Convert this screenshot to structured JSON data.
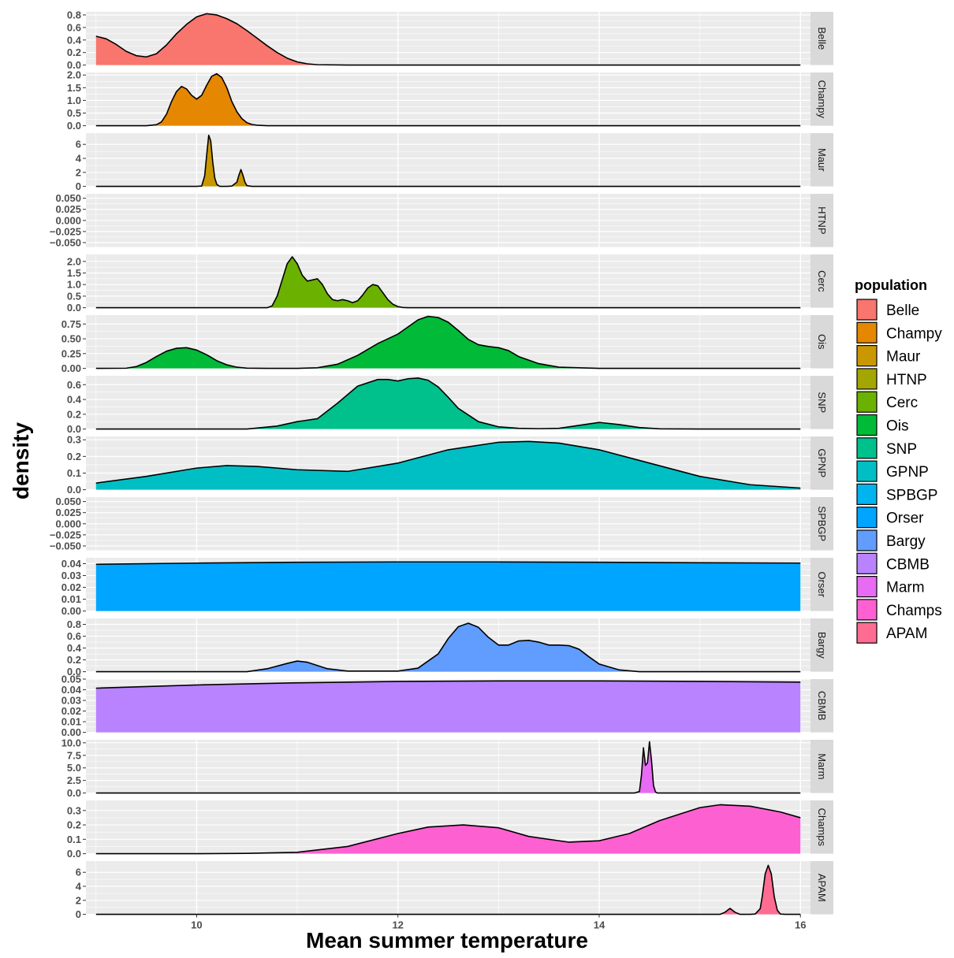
{
  "chart_data": {
    "type": "area",
    "title": "",
    "xlabel": "Mean summer temperature",
    "ylabel": "density",
    "xlim": [
      8.9,
      16.1
    ],
    "xticks": [
      10,
      12,
      14,
      16
    ],
    "grid": true,
    "legend": {
      "title": "population",
      "placement": "right",
      "entries": [
        "Belle",
        "Champy",
        "Maur",
        "HTNP",
        "Cerc",
        "Ois",
        "SNP",
        "GPNP",
        "SPBGP",
        "Orser",
        "Bargy",
        "CBMB",
        "Marm",
        "Champs",
        "APAM"
      ]
    },
    "panels": [
      {
        "name": "Belle",
        "color": "#F8766D",
        "ylim": [
          0,
          0.85
        ],
        "yticks": [
          0,
          0.2,
          0.4,
          0.6,
          0.8
        ],
        "ylabels": [
          "0.0",
          "0.2",
          "0.4",
          "0.6",
          "0.8"
        ],
        "x": [
          9.0,
          9.1,
          9.2,
          9.3,
          9.4,
          9.5,
          9.6,
          9.7,
          9.8,
          9.9,
          10.0,
          10.1,
          10.2,
          10.3,
          10.4,
          10.5,
          10.6,
          10.7,
          10.8,
          10.9,
          11.0,
          11.1,
          11.2,
          11.5,
          12.0,
          13.0,
          14.0,
          15.0,
          16.0
        ],
        "y": [
          0.46,
          0.42,
          0.33,
          0.22,
          0.15,
          0.13,
          0.18,
          0.32,
          0.5,
          0.65,
          0.77,
          0.82,
          0.8,
          0.74,
          0.66,
          0.55,
          0.43,
          0.31,
          0.2,
          0.11,
          0.05,
          0.02,
          0.006,
          0.001,
          0,
          0,
          0,
          0,
          0
        ]
      },
      {
        "name": "Champy",
        "color": "#E58700",
        "ylim": [
          0,
          2.1
        ],
        "yticks": [
          0,
          0.5,
          1.0,
          1.5,
          2.0
        ],
        "ylabels": [
          "0.0",
          "0.5",
          "1.0",
          "1.5",
          "2.0"
        ],
        "x": [
          9.0,
          9.5,
          9.6,
          9.65,
          9.7,
          9.75,
          9.8,
          9.85,
          9.9,
          9.95,
          10.0,
          10.05,
          10.1,
          10.15,
          10.2,
          10.25,
          10.3,
          10.35,
          10.4,
          10.45,
          10.5,
          10.55,
          10.6,
          10.7,
          11.0,
          12.0,
          14.0,
          16.0
        ],
        "y": [
          0,
          0,
          0.04,
          0.15,
          0.45,
          0.95,
          1.35,
          1.55,
          1.45,
          1.2,
          1.05,
          1.2,
          1.6,
          1.95,
          2.05,
          1.9,
          1.5,
          0.95,
          0.55,
          0.28,
          0.12,
          0.05,
          0.02,
          0,
          0,
          0,
          0,
          0
        ]
      },
      {
        "name": "Maur",
        "color": "#C99800",
        "ylim": [
          0,
          7.6
        ],
        "yticks": [
          0,
          2,
          4,
          6
        ],
        "ylabels": [
          "0",
          "2",
          "4",
          "6"
        ],
        "x": [
          9.0,
          10.0,
          10.05,
          10.08,
          10.1,
          10.12,
          10.14,
          10.16,
          10.18,
          10.2,
          10.23,
          10.3,
          10.35,
          10.4,
          10.42,
          10.44,
          10.46,
          10.48,
          10.5,
          10.55,
          10.6,
          12.0,
          14.0,
          16.0
        ],
        "y": [
          0,
          0,
          0.05,
          1.5,
          4.5,
          7.3,
          6.5,
          3.5,
          1.2,
          0.3,
          0,
          0,
          0.05,
          0.6,
          1.6,
          2.4,
          1.6,
          0.6,
          0.1,
          0,
          0,
          0,
          0,
          0
        ]
      },
      {
        "name": "HTNP",
        "color": "#A3A500",
        "ylim": [
          -0.06,
          0.06
        ],
        "yticks": [
          -0.05,
          -0.025,
          0,
          0.025,
          0.05
        ],
        "ylabels": [
          "−0.050",
          "−0.025",
          "0.000",
          "0.025",
          "0.050"
        ],
        "x": [],
        "y": []
      },
      {
        "name": "Cerc",
        "color": "#6BB100",
        "ylim": [
          0,
          2.3
        ],
        "yticks": [
          0,
          0.5,
          1.0,
          1.5,
          2.0
        ],
        "ylabels": [
          "0.0",
          "0.5",
          "1.0",
          "1.5",
          "2.0"
        ],
        "x": [
          9.0,
          10.7,
          10.75,
          10.8,
          10.85,
          10.9,
          10.95,
          11.0,
          11.05,
          11.1,
          11.15,
          11.2,
          11.25,
          11.3,
          11.35,
          11.4,
          11.45,
          11.5,
          11.55,
          11.6,
          11.65,
          11.7,
          11.75,
          11.8,
          11.85,
          11.9,
          11.95,
          12.0,
          12.05,
          12.1,
          12.2,
          14.0,
          16.0
        ],
        "y": [
          0,
          0,
          0.08,
          0.5,
          1.2,
          1.9,
          2.2,
          1.9,
          1.4,
          1.15,
          1.2,
          1.25,
          1.0,
          0.6,
          0.35,
          0.3,
          0.35,
          0.3,
          0.22,
          0.3,
          0.55,
          0.85,
          1.0,
          0.95,
          0.65,
          0.35,
          0.15,
          0.05,
          0.01,
          0,
          0,
          0,
          0
        ]
      },
      {
        "name": "Ois",
        "color": "#00BA38",
        "ylim": [
          0,
          0.9
        ],
        "yticks": [
          0,
          0.25,
          0.5,
          0.75
        ],
        "ylabels": [
          "0.00",
          "0.25",
          "0.50",
          "0.75"
        ],
        "x": [
          9.0,
          9.3,
          9.4,
          9.5,
          9.6,
          9.7,
          9.8,
          9.9,
          10.0,
          10.1,
          10.2,
          10.3,
          10.4,
          10.5,
          10.7,
          11.0,
          11.2,
          11.4,
          11.6,
          11.8,
          12.0,
          12.1,
          12.2,
          12.3,
          12.4,
          12.5,
          12.6,
          12.7,
          12.8,
          12.9,
          13.0,
          13.1,
          13.2,
          13.4,
          13.6,
          14.0,
          15.0,
          16.0
        ],
        "y": [
          0,
          0.003,
          0.03,
          0.1,
          0.2,
          0.29,
          0.34,
          0.35,
          0.31,
          0.23,
          0.13,
          0.06,
          0.02,
          0.004,
          0,
          0,
          0.01,
          0.07,
          0.22,
          0.42,
          0.58,
          0.7,
          0.82,
          0.88,
          0.86,
          0.78,
          0.64,
          0.49,
          0.4,
          0.37,
          0.35,
          0.3,
          0.2,
          0.08,
          0.02,
          0,
          0,
          0
        ]
      },
      {
        "name": "SNP",
        "color": "#00C08B",
        "ylim": [
          0,
          0.72
        ],
        "yticks": [
          0,
          0.2,
          0.4,
          0.6
        ],
        "ylabels": [
          "0.0",
          "0.2",
          "0.4",
          "0.6"
        ],
        "x": [
          9.0,
          10.5,
          10.8,
          11.0,
          11.2,
          11.4,
          11.6,
          11.8,
          11.9,
          12.0,
          12.1,
          12.2,
          12.3,
          12.4,
          12.5,
          12.6,
          12.8,
          13.0,
          13.2,
          13.4,
          13.6,
          13.8,
          14.0,
          14.2,
          14.4,
          14.6,
          15.0,
          16.0
        ],
        "y": [
          0,
          0,
          0.04,
          0.1,
          0.14,
          0.35,
          0.58,
          0.67,
          0.67,
          0.65,
          0.68,
          0.69,
          0.66,
          0.57,
          0.43,
          0.28,
          0.1,
          0.03,
          0.01,
          0.005,
          0.01,
          0.05,
          0.09,
          0.06,
          0.02,
          0.003,
          0,
          0
        ]
      },
      {
        "name": "GPNP",
        "color": "#00BFC4",
        "ylim": [
          0,
          0.32
        ],
        "yticks": [
          0,
          0.1,
          0.2,
          0.3
        ],
        "ylabels": [
          "0.0",
          "0.1",
          "0.2",
          "0.3"
        ],
        "x": [
          9.0,
          9.5,
          10.0,
          10.3,
          10.6,
          11.0,
          11.5,
          12.0,
          12.5,
          13.0,
          13.3,
          13.6,
          14.0,
          14.5,
          15.0,
          15.5,
          16.0
        ],
        "y": [
          0.04,
          0.08,
          0.13,
          0.145,
          0.14,
          0.12,
          0.11,
          0.16,
          0.24,
          0.285,
          0.29,
          0.28,
          0.24,
          0.16,
          0.08,
          0.03,
          0.01
        ]
      },
      {
        "name": "SPBGP",
        "color": "#00B4EF",
        "ylim": [
          -0.06,
          0.06
        ],
        "yticks": [
          -0.05,
          -0.025,
          0,
          0.025,
          0.05
        ],
        "ylabels": [
          "−0.050",
          "−0.025",
          "0.000",
          "0.025",
          "0.050"
        ],
        "x": [],
        "y": []
      },
      {
        "name": "Orser",
        "color": "#00A5FF",
        "ylim": [
          0,
          0.045
        ],
        "yticks": [
          0,
          0.01,
          0.02,
          0.03,
          0.04
        ],
        "ylabels": [
          "0.00",
          "0.01",
          "0.02",
          "0.03",
          "0.04"
        ],
        "x": [
          9.0,
          10.0,
          11.0,
          12.0,
          13.0,
          14.0,
          15.0,
          16.0
        ],
        "y": [
          0.0395,
          0.0405,
          0.0412,
          0.0415,
          0.0415,
          0.0412,
          0.0408,
          0.0405
        ]
      },
      {
        "name": "Bargy",
        "color": "#619CFF",
        "ylim": [
          0,
          0.9
        ],
        "yticks": [
          0,
          0.2,
          0.4,
          0.6,
          0.8
        ],
        "ylabels": [
          "0.0",
          "0.2",
          "0.4",
          "0.6",
          "0.8"
        ],
        "x": [
          9.0,
          10.5,
          10.7,
          10.9,
          11.0,
          11.1,
          11.3,
          11.5,
          12.0,
          12.2,
          12.4,
          12.5,
          12.6,
          12.7,
          12.8,
          12.9,
          13.0,
          13.1,
          13.2,
          13.3,
          13.4,
          13.5,
          13.6,
          13.7,
          13.8,
          13.9,
          14.0,
          14.2,
          14.4,
          16.0
        ],
        "y": [
          0,
          0,
          0.05,
          0.14,
          0.18,
          0.16,
          0.05,
          0.01,
          0.01,
          0.06,
          0.3,
          0.56,
          0.76,
          0.82,
          0.75,
          0.58,
          0.45,
          0.45,
          0.52,
          0.53,
          0.5,
          0.45,
          0.45,
          0.44,
          0.38,
          0.25,
          0.13,
          0.03,
          0,
          0
        ]
      },
      {
        "name": "CBMB",
        "color": "#B983FF",
        "ylim": [
          0,
          0.05
        ],
        "yticks": [
          0,
          0.01,
          0.02,
          0.03,
          0.04,
          0.05
        ],
        "ylabels": [
          "0.00",
          "0.01",
          "0.02",
          "0.03",
          "0.04",
          "0.05"
        ],
        "x": [
          9.0,
          10.0,
          11.0,
          12.0,
          13.0,
          14.0,
          15.0,
          16.0
        ],
        "y": [
          0.0415,
          0.0445,
          0.0465,
          0.0478,
          0.0483,
          0.0483,
          0.0478,
          0.0472
        ]
      },
      {
        "name": "Marm",
        "color": "#E76BF3",
        "ylim": [
          0,
          10.6
        ],
        "yticks": [
          0,
          2.5,
          5,
          7.5,
          10
        ],
        "ylabels": [
          "0.0",
          "2.5",
          "5.0",
          "7.5",
          "10.0"
        ],
        "x": [
          9.0,
          14.35,
          14.4,
          14.42,
          14.44,
          14.46,
          14.48,
          14.5,
          14.52,
          14.54,
          14.56,
          14.58,
          14.6,
          16.0
        ],
        "y": [
          0,
          0,
          0.3,
          3.5,
          9.0,
          5.5,
          6.0,
          10.2,
          6.5,
          1.5,
          0.2,
          0,
          0,
          0
        ]
      },
      {
        "name": "Champs",
        "color": "#FD61D1",
        "ylim": [
          0,
          0.37
        ],
        "yticks": [
          0,
          0.1,
          0.2,
          0.3
        ],
        "ylabels": [
          "0.0",
          "0.1",
          "0.2",
          "0.3"
        ],
        "x": [
          9.0,
          10.0,
          10.5,
          11.0,
          11.5,
          12.0,
          12.3,
          12.65,
          13.0,
          13.3,
          13.7,
          14.0,
          14.3,
          14.6,
          15.0,
          15.2,
          15.5,
          15.8,
          16.0
        ],
        "y": [
          0,
          0,
          0.002,
          0.01,
          0.05,
          0.14,
          0.185,
          0.2,
          0.18,
          0.12,
          0.08,
          0.09,
          0.14,
          0.23,
          0.32,
          0.34,
          0.33,
          0.29,
          0.25
        ]
      },
      {
        "name": "APAM",
        "color": "#FF6C91",
        "ylim": [
          0,
          7.6
        ],
        "yticks": [
          0,
          2,
          4,
          6
        ],
        "ylabels": [
          "0",
          "2",
          "4",
          "6"
        ],
        "x": [
          9.0,
          15.2,
          15.25,
          15.3,
          15.35,
          15.4,
          15.5,
          15.55,
          15.6,
          15.62,
          15.65,
          15.68,
          15.71,
          15.74,
          15.77,
          15.8,
          15.85,
          16.0
        ],
        "y": [
          0,
          0,
          0.3,
          0.85,
          0.3,
          0,
          0,
          0.05,
          0.8,
          2.5,
          5.8,
          7.0,
          5.8,
          2.5,
          0.6,
          0.05,
          0,
          0
        ]
      }
    ]
  }
}
